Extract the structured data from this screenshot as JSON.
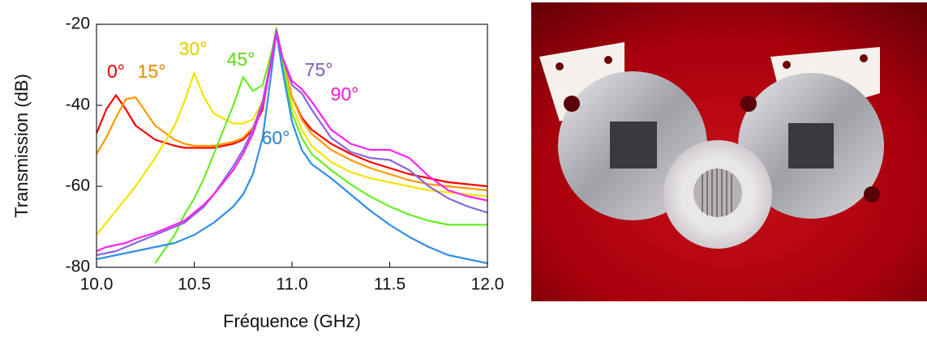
{
  "chart_data": {
    "type": "line",
    "xlabel": "Fréquence (GHz)",
    "ylabel": "Transmission (dB)",
    "xlim": [
      10,
      12
    ],
    "xticks": [
      {
        "value": 10,
        "label": "10.0"
      },
      10.5,
      {
        "value": 11,
        "label": "11.0"
      },
      11.5,
      {
        "value": 12,
        "label": "12.0"
      }
    ],
    "ylim": [
      -80,
      -20
    ],
    "yticks": [
      -20,
      -40,
      -60,
      -80
    ],
    "x": [
      10.0,
      10.05,
      10.1,
      10.15,
      10.2,
      10.3,
      10.4,
      10.45,
      10.5,
      10.55,
      10.6,
      10.7,
      10.75,
      10.8,
      10.85,
      10.9,
      10.92,
      10.95,
      11.0,
      11.05,
      11.1,
      11.2,
      11.3,
      11.4,
      11.5,
      11.6,
      11.7,
      11.8,
      11.9,
      12.0
    ],
    "series": [
      {
        "name": "0°",
        "color": "#ff0000",
        "values": [
          -47,
          -41,
          -37.5,
          -41,
          -45,
          -48.5,
          -50,
          -50.5,
          -50.5,
          -50.5,
          -50.5,
          -49.5,
          -48.5,
          -46,
          -41,
          -27,
          -21,
          -28,
          -38,
          -43,
          -46,
          -49.5,
          -52,
          -54,
          -55.5,
          -57,
          -58,
          -59,
          -59.5,
          -60
        ]
      },
      {
        "name": "15°",
        "color": "#ff9900",
        "values": [
          -52,
          -48,
          -43,
          -38.5,
          -38,
          -45,
          -48.5,
          -49.5,
          -50,
          -50,
          -50,
          -49,
          -48,
          -45.5,
          -40,
          -27,
          -21,
          -28,
          -38,
          -43.5,
          -47,
          -51,
          -53.5,
          -55.5,
          -57,
          -58.5,
          -59.5,
          -60,
          -60.5,
          -61
        ]
      },
      {
        "name": "30°",
        "color": "#f5e400",
        "values": [
          -72,
          -69,
          -66,
          -63,
          -60,
          -53,
          -45,
          -39,
          -32,
          -38,
          -42,
          -44.5,
          -44.5,
          -43.5,
          -39,
          -27,
          -21,
          -29,
          -40,
          -46,
          -50,
          -54,
          -56.5,
          -58,
          -59,
          -60,
          -61,
          -61.5,
          -62,
          -62.5
        ]
      },
      {
        "name": "45°",
        "color": "#66ee22",
        "values": [
          null,
          null,
          null,
          null,
          null,
          -79,
          -72,
          -67,
          -63,
          -58,
          -52,
          -40,
          -33,
          -36.5,
          -35,
          -26,
          -21,
          -29,
          -42,
          -48,
          -52,
          -56,
          -59.5,
          -62.5,
          -65,
          -67,
          -68.5,
          -69.5,
          -69.5,
          -69.5
        ]
      },
      {
        "name": "60°",
        "color": "#2f8fe8",
        "values": [
          -78,
          -77.5,
          -77,
          -76.5,
          -76,
          -75,
          -74,
          -73,
          -72,
          -70.5,
          -69,
          -65,
          -62,
          -57,
          -48,
          -30,
          -22,
          -31,
          -44,
          -51,
          -54.5,
          -58,
          -62,
          -66,
          -69.5,
          -72.5,
          -75,
          -77,
          -78,
          -79
        ]
      },
      {
        "name": "75°",
        "color": "#8866e0",
        "values": [
          -77,
          -76.5,
          -76,
          -75,
          -74,
          -72,
          -70,
          -69,
          -67,
          -65,
          -62,
          -55,
          -51,
          -46,
          -39,
          -27,
          -21.5,
          -28,
          -35,
          -37,
          -41,
          -48,
          -51.5,
          -53,
          -53.5,
          -56,
          -60,
          -63,
          -65,
          -66.5
        ]
      },
      {
        "name": "90°",
        "color": "#ff22ee",
        "values": [
          -76,
          -75,
          -74.5,
          -74,
          -73,
          -71.5,
          -69.5,
          -68.5,
          -66.5,
          -64.5,
          -62,
          -56,
          -52,
          -47,
          -40,
          -28,
          -22,
          -28,
          -34,
          -36,
          -39,
          -46,
          -49.5,
          -51,
          -51,
          -53,
          -57.5,
          -61,
          -62.5,
          -63.5
        ]
      }
    ]
  }
}
